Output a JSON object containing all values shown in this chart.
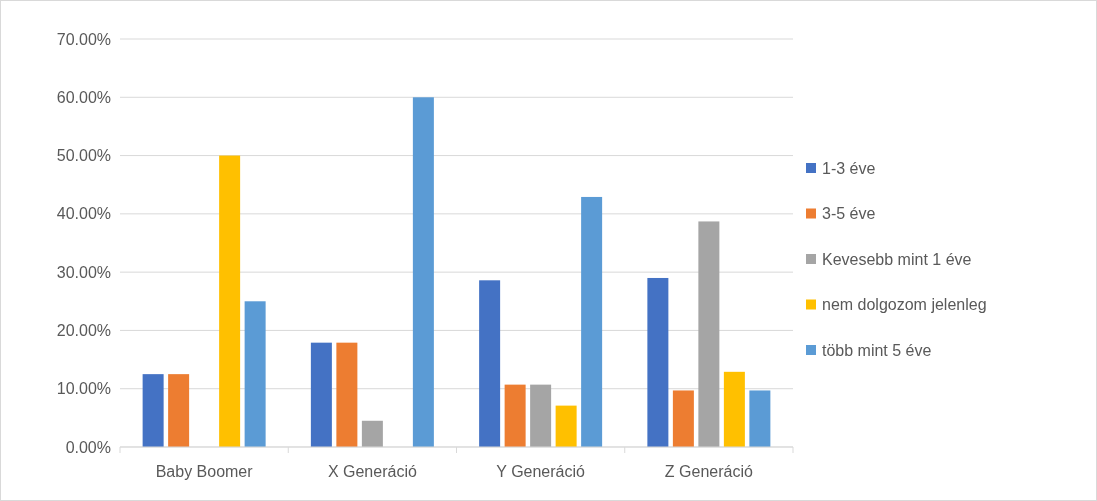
{
  "chart_data": {
    "type": "bar",
    "categories": [
      "Baby Boomer",
      "X Generáció",
      "Y Generáció",
      "Z Generáció"
    ],
    "series": [
      {
        "name": "1-3 éve",
        "color": "#4472c4",
        "values": [
          12.5,
          17.9,
          28.6,
          29.0
        ]
      },
      {
        "name": "3-5 éve",
        "color": "#ed7d31",
        "values": [
          12.5,
          17.9,
          10.7,
          9.7
        ]
      },
      {
        "name": "Kevesebb mint 1 éve",
        "color": "#a5a5a5",
        "values": [
          0,
          4.5,
          10.7,
          38.7
        ]
      },
      {
        "name": "nem dolgozom jelenleg",
        "color": "#ffc000",
        "values": [
          50.0,
          0,
          7.1,
          12.9
        ]
      },
      {
        "name": "több mint 5 éve",
        "color": "#5b9bd5",
        "values": [
          25.0,
          60.0,
          42.9,
          9.7
        ]
      }
    ],
    "ylim": [
      0,
      70
    ],
    "yticks": [
      {
        "value": 0,
        "label": "0.00%"
      },
      {
        "value": 10,
        "label": "10.00%"
      },
      {
        "value": 20,
        "label": "20.00%"
      },
      {
        "value": 30,
        "label": "30.00%"
      },
      {
        "value": 40,
        "label": "40.00%"
      },
      {
        "value": 50,
        "label": "50.00%"
      },
      {
        "value": 60,
        "label": "60.00%"
      },
      {
        "value": 70,
        "label": "70.00%"
      }
    ],
    "grid": "y",
    "legend": "right"
  }
}
